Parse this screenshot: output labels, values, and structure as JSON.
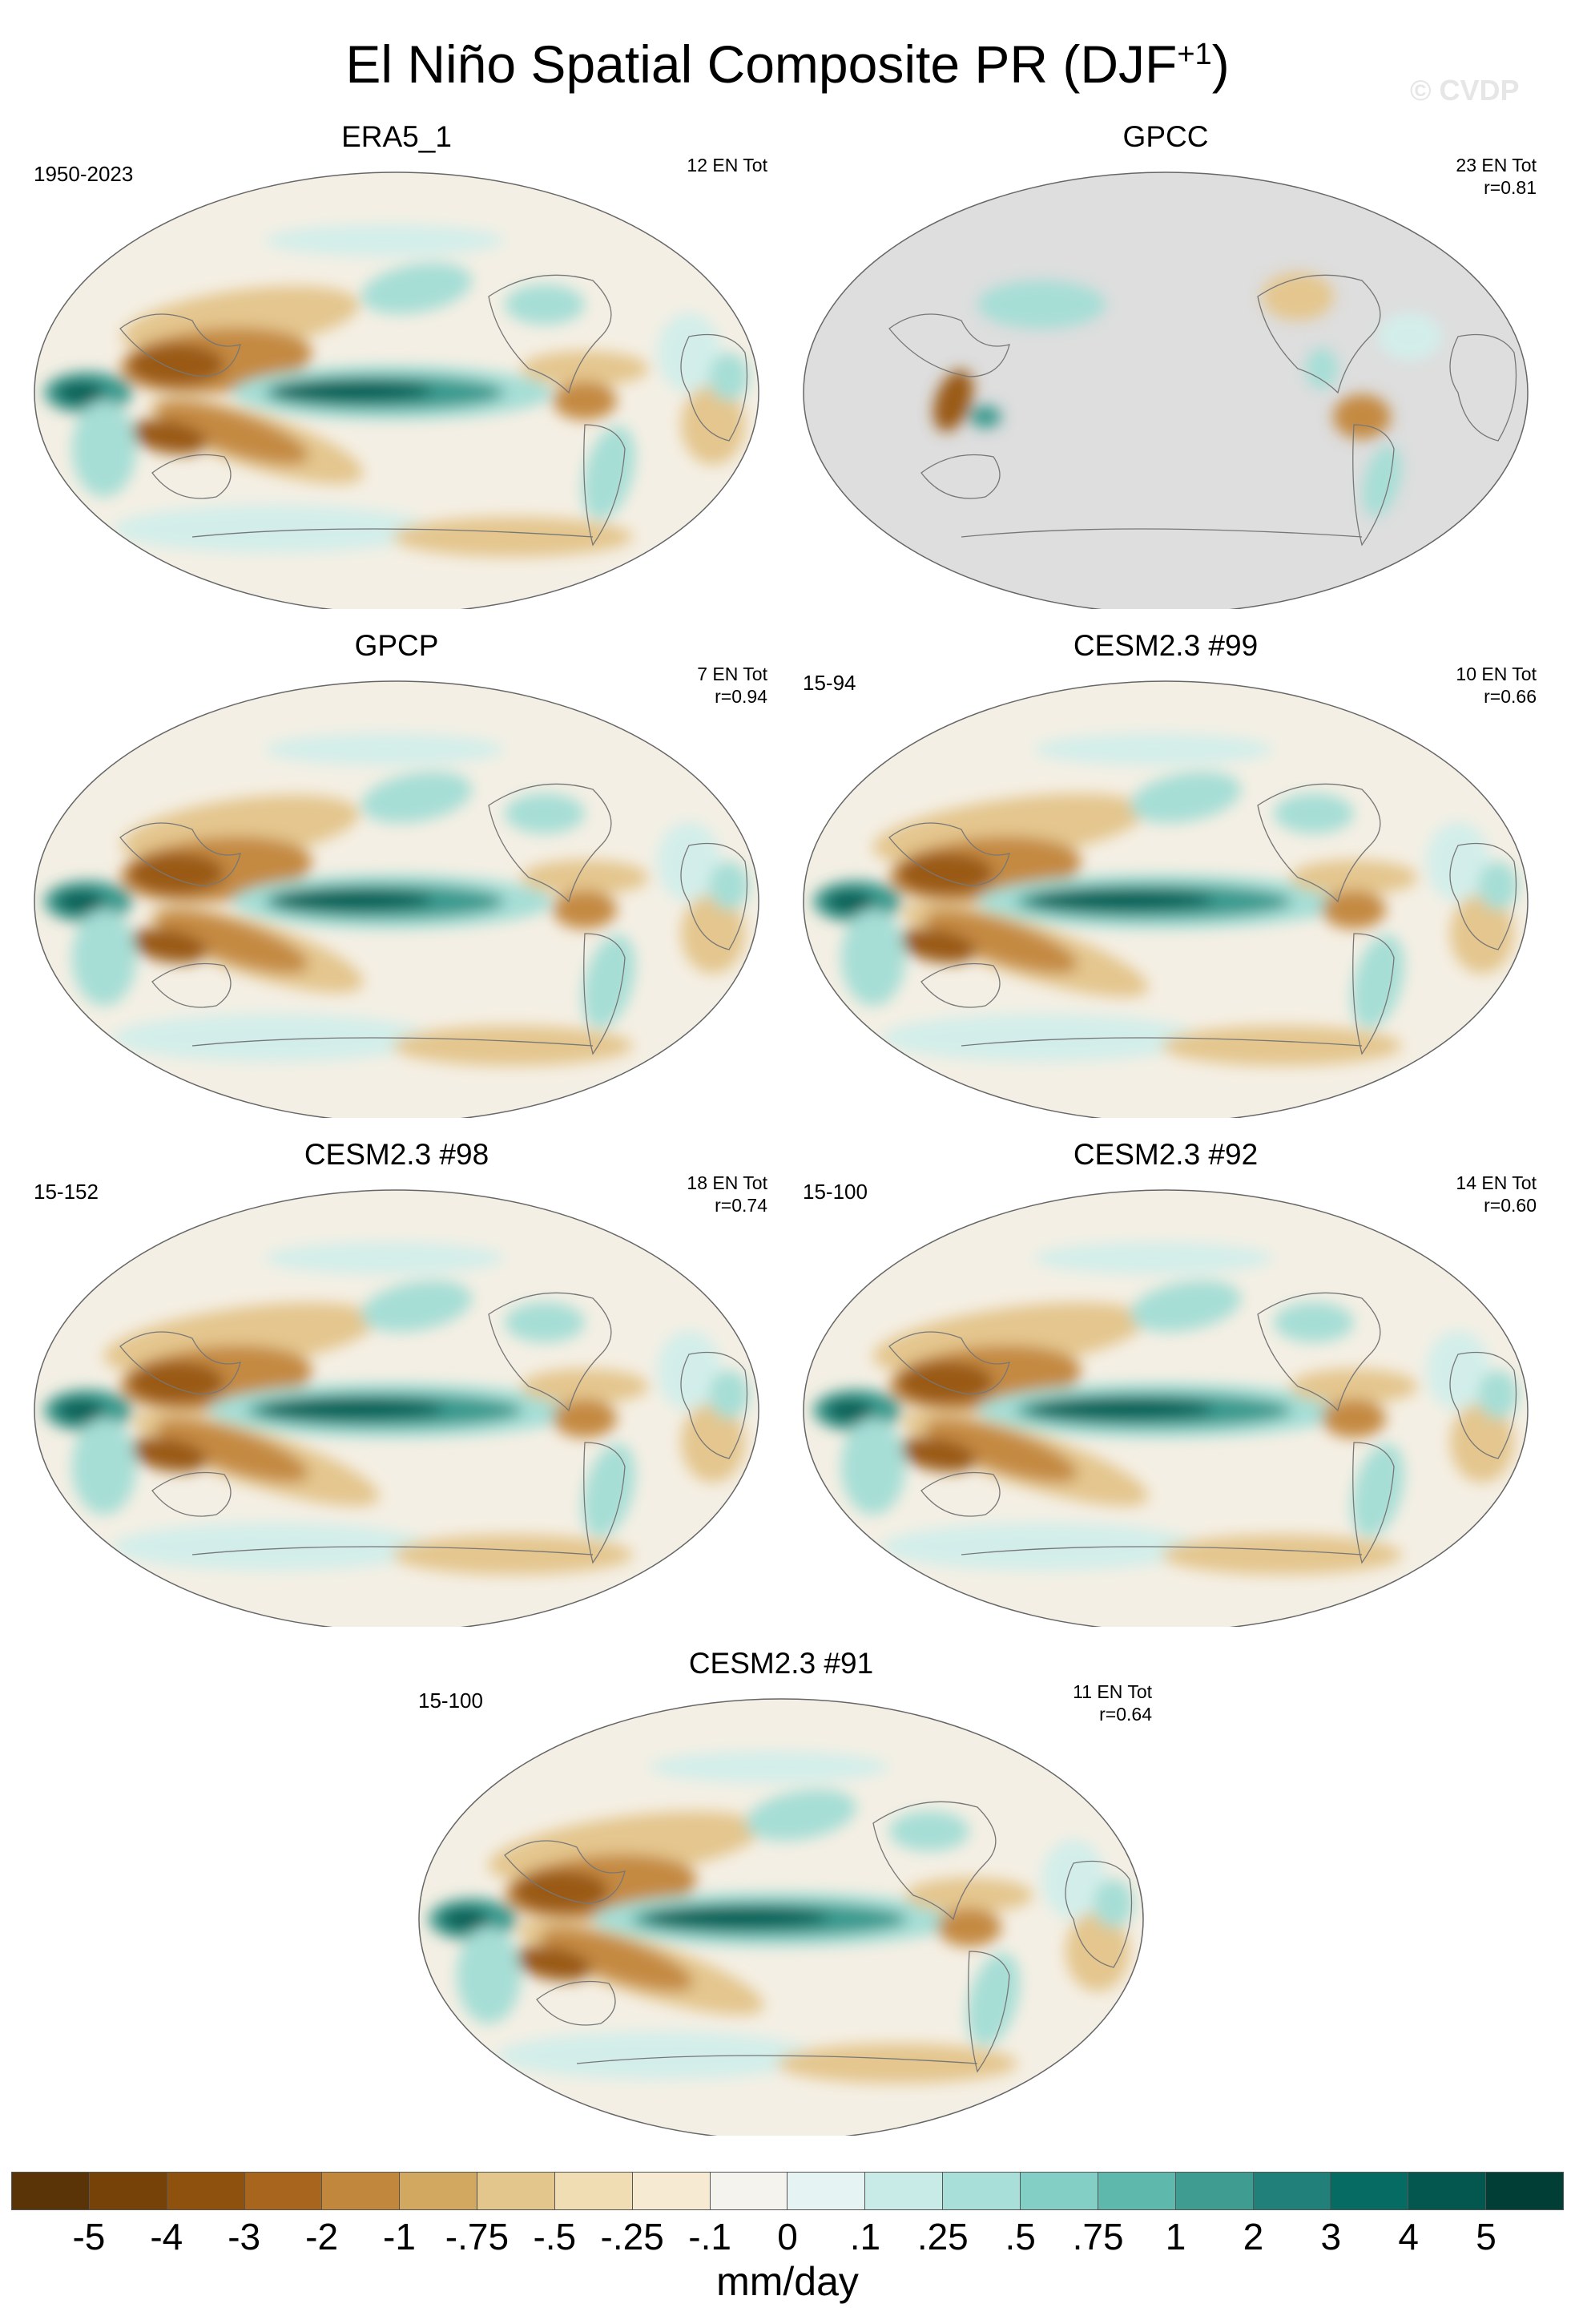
{
  "title": {
    "main": "El Niño Spatial Composite PR (DJF",
    "sup": "+1",
    "close": ")"
  },
  "watermark": "© CVDP",
  "panels": [
    {
      "title": "ERA5_1",
      "left_label": "1950-2023",
      "count": "12 EN Tot",
      "corr": "",
      "variant": "era5"
    },
    {
      "title": "GPCC",
      "left_label": "",
      "count": "23 EN Tot",
      "corr": "r=0.81",
      "variant": "gpcc"
    },
    {
      "title": "GPCP",
      "left_label": "",
      "count": "7 EN Tot",
      "corr": "r=0.94",
      "variant": "gpcp"
    },
    {
      "title": "CESM2.3 #99",
      "left_label": "15-94",
      "count": "10 EN Tot",
      "corr": "r=0.66",
      "variant": "model"
    },
    {
      "title": "CESM2.3 #98",
      "left_label": "15-152",
      "count": "18 EN Tot",
      "corr": "r=0.74",
      "variant": "model"
    },
    {
      "title": "CESM2.3 #92",
      "left_label": "15-100",
      "count": "14 EN Tot",
      "corr": "r=0.60",
      "variant": "model"
    },
    {
      "title": "CESM2.3 #91",
      "left_label": "15-100",
      "count": "11 EN Tot",
      "corr": "r=0.64",
      "variant": "model"
    }
  ],
  "colorbar": {
    "colors": [
      "#5a3306",
      "#774208",
      "#8f520e",
      "#a8651e",
      "#c0873d",
      "#d2a75f",
      "#e3c68b",
      "#f0ddb3",
      "#f6ebd2",
      "#f5f3ee",
      "#e5f3f2",
      "#c9ebe7",
      "#a8dfd9",
      "#83cfc6",
      "#5fb8ac",
      "#3e9c90",
      "#22807a",
      "#066b62",
      "#03574e",
      "#013f36"
    ],
    "labels": [
      "-5",
      "-4",
      "-3",
      "-2",
      "-1",
      "-.75",
      "-.5",
      "-.25",
      "-.1",
      "0",
      ".1",
      ".25",
      ".5",
      ".75",
      "1",
      "2",
      "3",
      "4",
      "5"
    ],
    "units": "mm/day"
  }
}
